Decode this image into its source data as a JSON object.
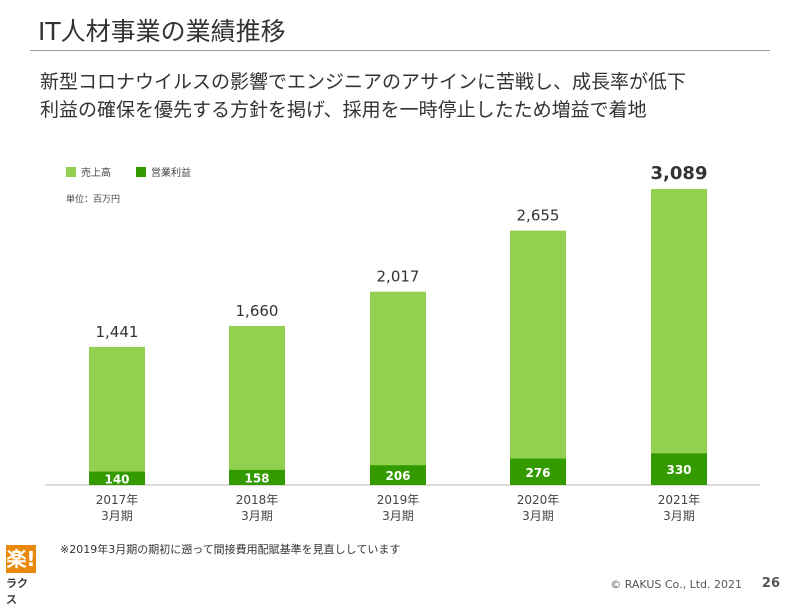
{
  "header": {
    "title": "IT人材事業の業績推移",
    "subtitle_lines": [
      "新型コロナウイルスの影響でエンジニアのアサインに苦戦し、成長率が低下",
      "利益の確保を優先する方針を掲げ、採用を一時停止したため増益で着地"
    ]
  },
  "chart_data": {
    "type": "bar",
    "stacked": "overlay",
    "categories": [
      "2017年\n3月期",
      "2018年\n3月期",
      "2019年\n3月期",
      "2020年\n3月期",
      "2021年\n3月期"
    ],
    "category_lines": [
      [
        "2017年",
        "3月期"
      ],
      [
        "2018年",
        "3月期"
      ],
      [
        "2019年",
        "3月期"
      ],
      [
        "2020年",
        "3月期"
      ],
      [
        "2021年",
        "3月期"
      ]
    ],
    "series": [
      {
        "name": "売上高",
        "values": [
          1441,
          1660,
          2017,
          2655,
          3089
        ],
        "labels": [
          "1,441",
          "1,660",
          "2,017",
          "2,655",
          "3,089"
        ],
        "color": "#92d050"
      },
      {
        "name": "営業利益",
        "values": [
          140,
          158,
          206,
          276,
          330
        ],
        "labels": [
          "140",
          "158",
          "206",
          "276",
          "330"
        ],
        "color": "#339a00"
      }
    ],
    "unit_label": "単位：百万円",
    "legend": "top-left",
    "ylim": [
      0,
      3089
    ]
  },
  "footer": {
    "note": "※2019年3月期の期初に遡って間接費用配賦基準を見直ししています",
    "logo_mark": "楽!",
    "logo_text": "ラクス",
    "copyright": "© RAKUS Co., Ltd. 2021",
    "page": "26"
  }
}
